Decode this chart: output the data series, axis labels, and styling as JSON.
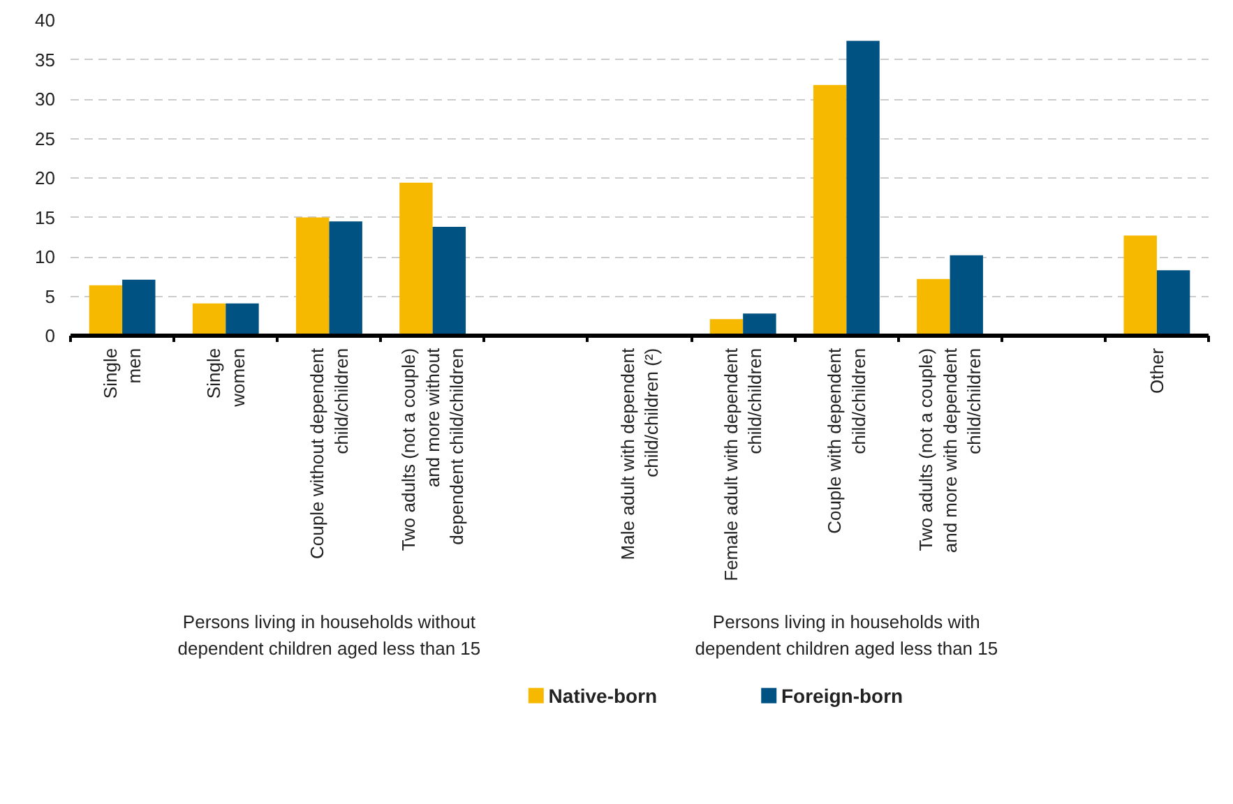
{
  "chart_data": {
    "type": "bar",
    "categories": [
      "Single\nmen",
      "Single\nwomen",
      "Couple without dependent\nchild/children",
      "Two adults (not a couple)\nand more without\ndependent child/children",
      null,
      "Male adult with dependent\nchild/children (²)",
      "Female adult with dependent\nchild/children",
      "Couple with dependent\nchild/children",
      "Two adults (not a couple)\nand more with dependent\nchild/children",
      null,
      "Other"
    ],
    "series": [
      {
        "name": "Native-born",
        "color": "#f7b800",
        "values": [
          6.4,
          4.1,
          15.0,
          19.4,
          null,
          null,
          2.1,
          31.8,
          7.2,
          null,
          12.7
        ]
      },
      {
        "name": "Foreign-born",
        "color": "#005282",
        "values": [
          7.1,
          4.1,
          14.5,
          13.8,
          null,
          null,
          2.8,
          37.4,
          10.2,
          null,
          8.3
        ]
      }
    ],
    "ylim": [
      0,
      40
    ],
    "yticks": [
      0,
      5,
      10,
      15,
      20,
      25,
      30,
      35,
      40
    ],
    "grid": "y",
    "legend": "bottom",
    "annotations": [
      "Persons living in households without\ndependent children aged less than 15",
      "Persons living in households with\ndependent children aged less than 15"
    ]
  }
}
